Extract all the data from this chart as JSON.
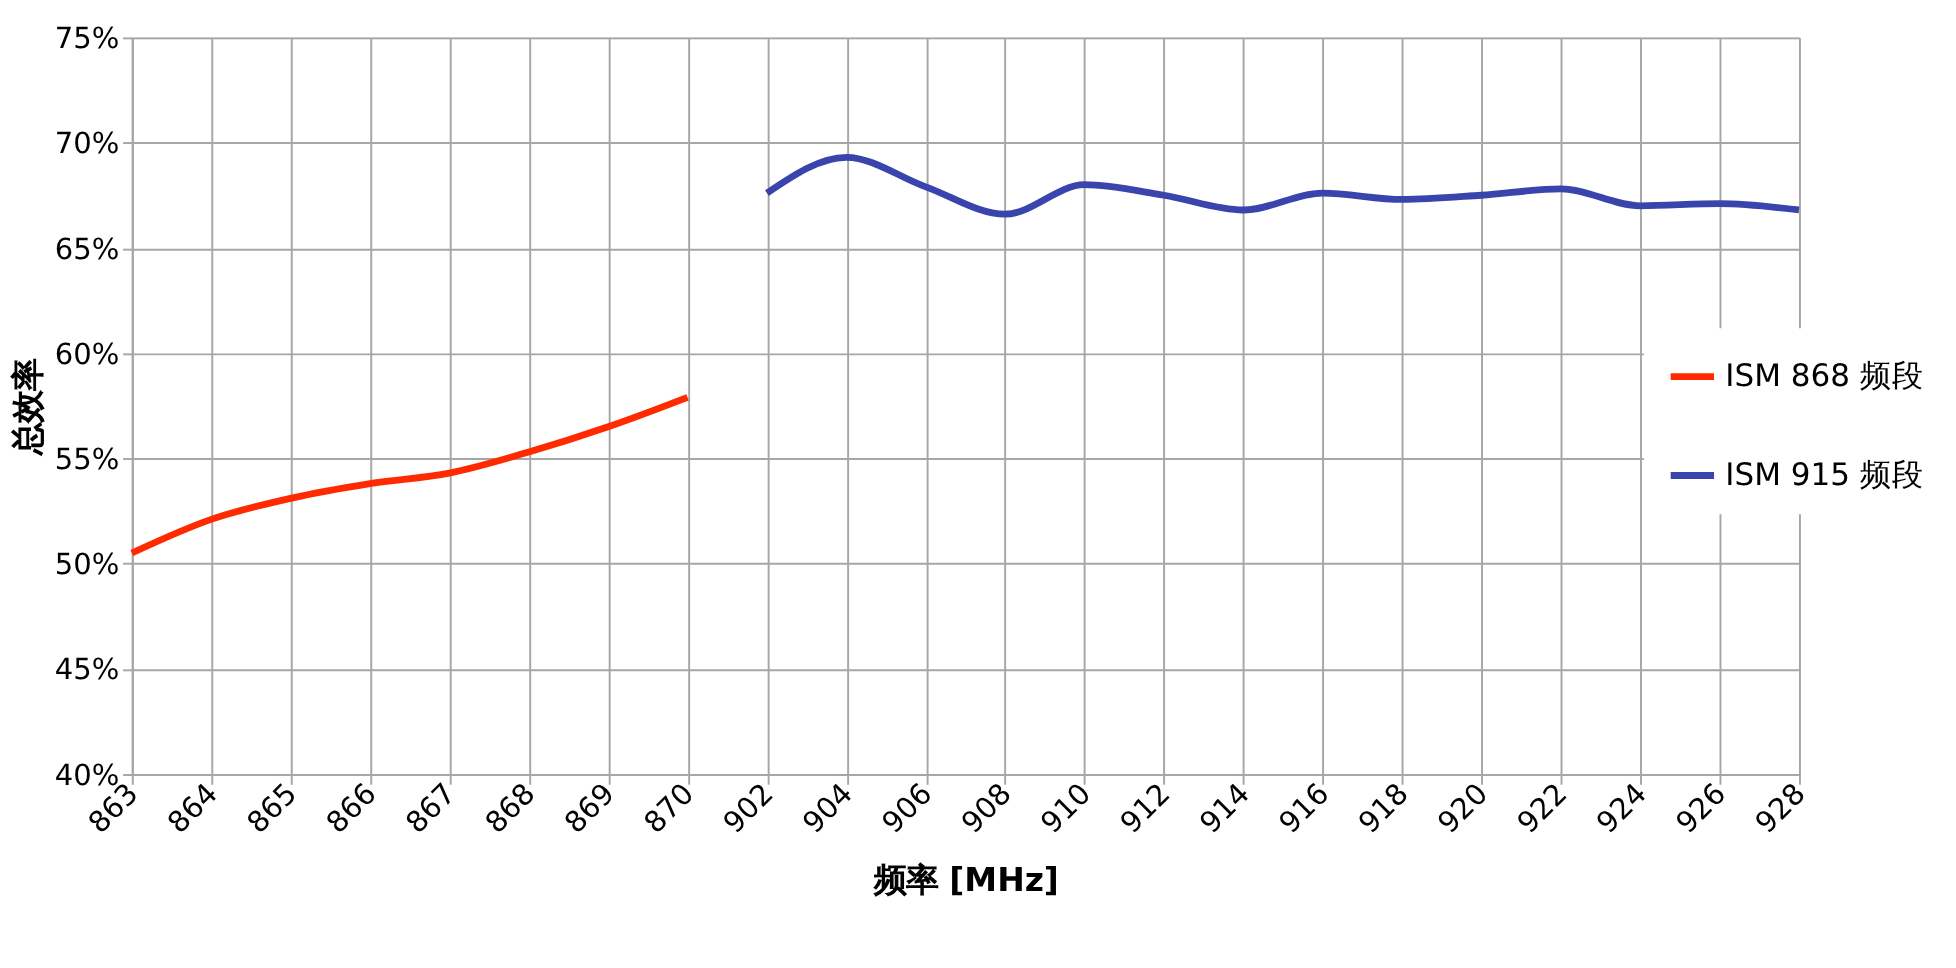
{
  "chart_data": {
    "type": "line",
    "xlabel": "频率 [MHz]",
    "ylabel": "总效率",
    "categories": [
      "863",
      "864",
      "865",
      "866",
      "867",
      "868",
      "869",
      "870",
      "902",
      "904",
      "906",
      "908",
      "910",
      "912",
      "914",
      "916",
      "918",
      "920",
      "922",
      "924",
      "926",
      "928"
    ],
    "series": [
      {
        "name": "ISM 868 频段",
        "color": "#ff2a00",
        "values": [
          50.5,
          52.1,
          53.1,
          53.8,
          54.3,
          55.3,
          56.5,
          57.9,
          null,
          null,
          null,
          null,
          null,
          null,
          null,
          null,
          null,
          null,
          null,
          null,
          null,
          null
        ]
      },
      {
        "name": "ISM 915 频段",
        "color": "#3a44ad",
        "values": [
          null,
          null,
          null,
          null,
          null,
          null,
          null,
          null,
          67.6,
          69.3,
          67.9,
          66.6,
          68.0,
          67.5,
          66.8,
          67.6,
          67.3,
          67.5,
          67.8,
          67.0,
          67.1,
          66.8
        ]
      }
    ],
    "ylim": [
      40,
      75
    ],
    "yticks": [
      {
        "value": 40,
        "label": "40%"
      },
      {
        "value": 45,
        "label": "45%"
      },
      {
        "value": 50,
        "label": "50%"
      },
      {
        "value": 55,
        "label": "55%"
      },
      {
        "value": 60,
        "label": "60%"
      },
      {
        "value": 65,
        "label": "65%"
      },
      {
        "value": 70,
        "label": "70%"
      },
      {
        "value": 75,
        "label": "75%"
      }
    ],
    "grid": true,
    "legend": "right",
    "marker": "none",
    "line_style": "solid"
  }
}
